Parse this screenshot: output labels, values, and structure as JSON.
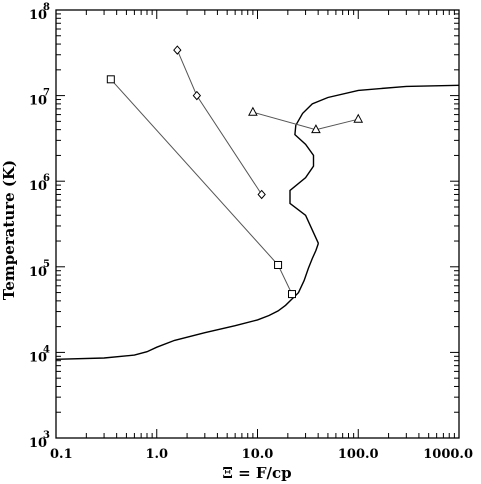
{
  "chart_data": {
    "type": "scatter",
    "title": "",
    "xlabel": "Ξ = F/cp",
    "ylabel": "Temperature (K)",
    "xscale": "log",
    "yscale": "log",
    "xlim": [
      0.1,
      1000.0
    ],
    "ylim": [
      1000,
      100000000
    ],
    "grid": false,
    "x_ticks": [
      {
        "value": 0.1,
        "label": "0.1"
      },
      {
        "value": 1.0,
        "label": "1.0"
      },
      {
        "value": 10,
        "label": "10.0"
      },
      {
        "value": 100,
        "label": "100.0"
      },
      {
        "value": 1000,
        "label": "1000.0"
      }
    ],
    "y_ticks": [
      {
        "value": 1000,
        "base": "10",
        "exp": "3"
      },
      {
        "value": 10000,
        "base": "10",
        "exp": "4"
      },
      {
        "value": 100000,
        "base": "10",
        "exp": "5"
      },
      {
        "value": 1000000,
        "base": "10",
        "exp": "6"
      },
      {
        "value": 10000000,
        "base": "10",
        "exp": "7"
      },
      {
        "value": 100000000,
        "base": "10",
        "exp": "8"
      }
    ],
    "curve": {
      "x": [
        0.1,
        0.3,
        0.6,
        0.8,
        1.0,
        1.5,
        3.0,
        6.0,
        10.0,
        13.0,
        16.0,
        19.0,
        22.0,
        25.5,
        29.0,
        32.0,
        35.0,
        38.0,
        40.0,
        40.0,
        30.0,
        21.0,
        21.0,
        30.0,
        36.0,
        36.0,
        30.0,
        23.5,
        24.0,
        28.0,
        35.0,
        50.0,
        100.0,
        300.0,
        1000.0
      ],
      "y": [
        8300,
        8600,
        9300,
        10200,
        11500,
        13800,
        17000,
        20500,
        24000,
        27000,
        30500,
        35500,
        42000,
        50000,
        69000,
        96000,
        125000,
        155000,
        185000,
        190000,
        400000,
        550000,
        780000,
        1100000,
        1500000,
        2000000,
        2700000,
        3500000,
        4500000,
        6200000,
        8000000,
        9500000,
        11500000,
        12800000,
        13200000
      ]
    },
    "series": [
      {
        "marker": "square",
        "x": [
          0.35,
          16.0,
          22.0
        ],
        "y": [
          15500000,
          105000,
          48000
        ]
      },
      {
        "marker": "diamond",
        "x": [
          1.6,
          2.5,
          11.0
        ],
        "y": [
          34000000,
          10000000,
          700000
        ]
      },
      {
        "marker": "triangle",
        "x": [
          9.0,
          38.0,
          100.0
        ],
        "y": [
          6400000,
          4000000,
          5300000
        ]
      }
    ]
  }
}
